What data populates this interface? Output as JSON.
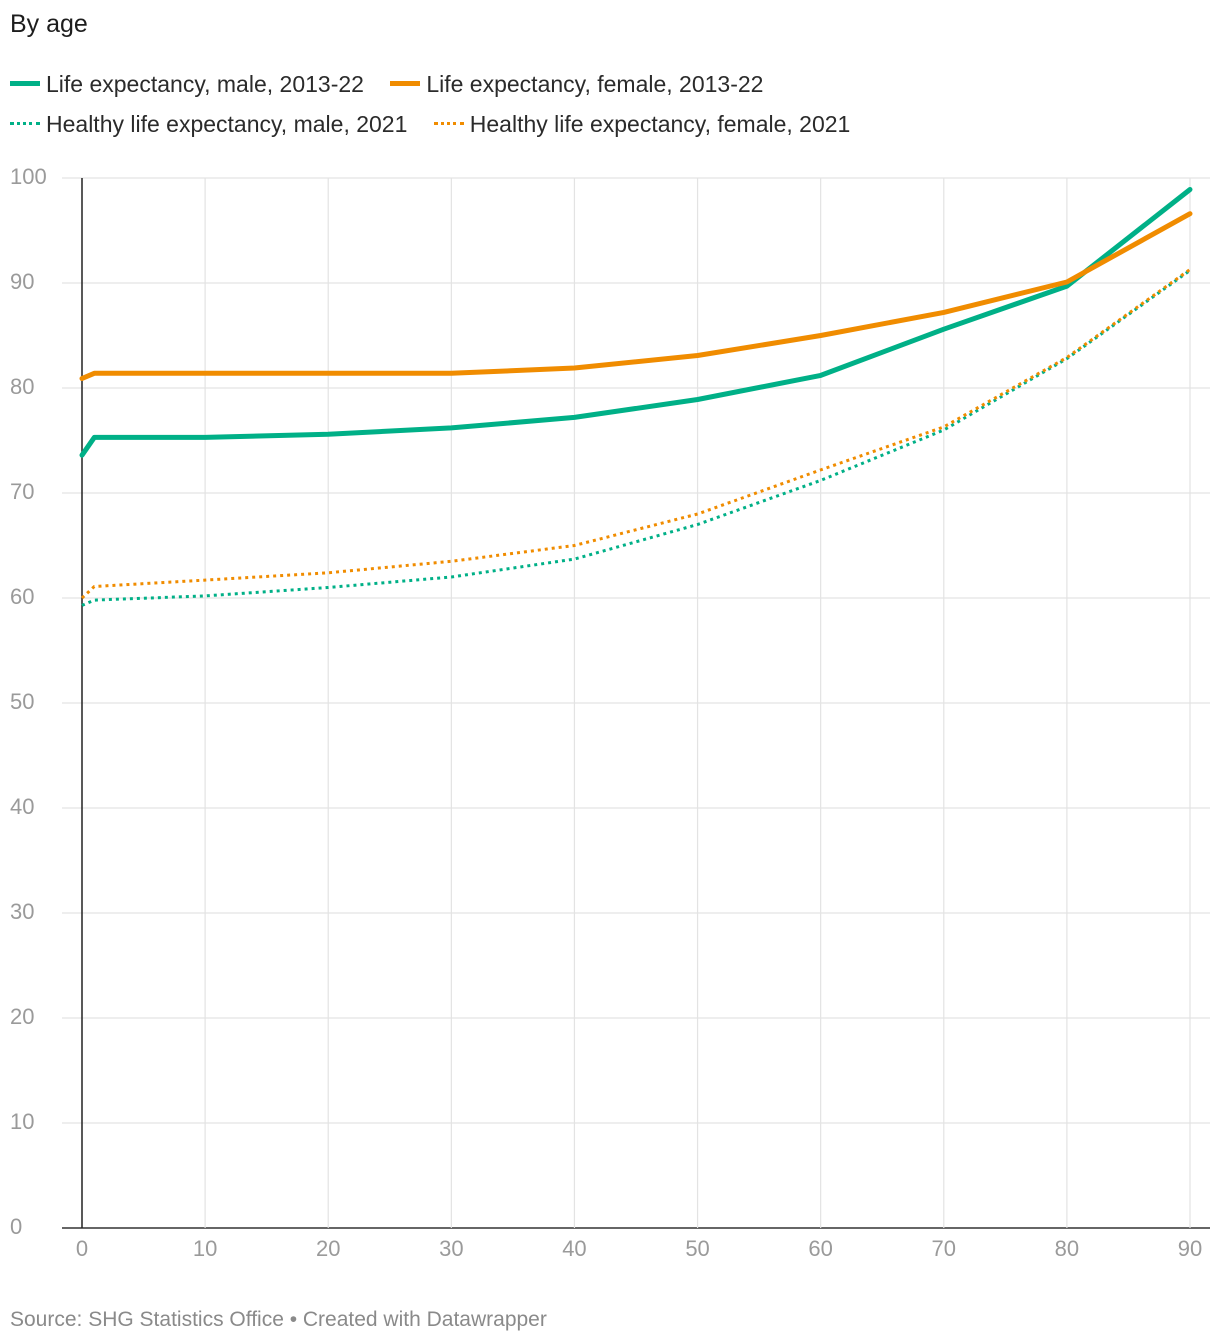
{
  "title": "By age",
  "source": "Source: SHG Statistics Office • Created with Datawrapper",
  "chart_data": {
    "type": "line",
    "title": "By age",
    "xlabel": "",
    "ylabel": "",
    "xlim": [
      0,
      90
    ],
    "ylim": [
      0,
      100
    ],
    "x_ticks": [
      0,
      10,
      20,
      30,
      40,
      50,
      60,
      70,
      80,
      90
    ],
    "y_ticks": [
      0,
      10,
      20,
      30,
      40,
      50,
      60,
      70,
      80,
      90,
      100
    ],
    "grid": true,
    "legend_position": "top",
    "series": [
      {
        "name": "Life expectancy, male, 2013-22",
        "color": "#00b087",
        "style": "solid",
        "points": [
          [
            0,
            73.6
          ],
          [
            1,
            75.3
          ],
          [
            10,
            75.3
          ],
          [
            20,
            75.6
          ],
          [
            30,
            76.2
          ],
          [
            40,
            77.2
          ],
          [
            50,
            78.9
          ],
          [
            60,
            81.2
          ],
          [
            70,
            85.6
          ],
          [
            80,
            89.7
          ],
          [
            90,
            98.9
          ]
        ]
      },
      {
        "name": "Life expectancy, female, 2013-22",
        "color": "#f08c00",
        "style": "solid",
        "points": [
          [
            0,
            80.9
          ],
          [
            1,
            81.4
          ],
          [
            10,
            81.4
          ],
          [
            20,
            81.4
          ],
          [
            30,
            81.4
          ],
          [
            40,
            81.9
          ],
          [
            50,
            83.1
          ],
          [
            60,
            85.0
          ],
          [
            70,
            87.2
          ],
          [
            80,
            90.1
          ],
          [
            90,
            96.6
          ]
        ]
      },
      {
        "name": "Healthy life expectancy, male, 2021",
        "color": "#00b087",
        "style": "dotted",
        "points": [
          [
            0,
            59.3
          ],
          [
            1,
            59.8
          ],
          [
            10,
            60.2
          ],
          [
            20,
            61.0
          ],
          [
            30,
            62.0
          ],
          [
            40,
            63.7
          ],
          [
            50,
            67.0
          ],
          [
            60,
            71.2
          ],
          [
            70,
            76.0
          ],
          [
            80,
            82.8
          ],
          [
            90,
            91.2
          ]
        ]
      },
      {
        "name": "Healthy life expectancy, female, 2021",
        "color": "#f08c00",
        "style": "dotted",
        "points": [
          [
            0,
            60.0
          ],
          [
            1,
            61.1
          ],
          [
            10,
            61.7
          ],
          [
            20,
            62.4
          ],
          [
            30,
            63.5
          ],
          [
            40,
            65.0
          ],
          [
            50,
            68.0
          ],
          [
            60,
            72.2
          ],
          [
            70,
            76.3
          ],
          [
            80,
            82.9
          ],
          [
            90,
            91.3
          ]
        ]
      }
    ]
  }
}
